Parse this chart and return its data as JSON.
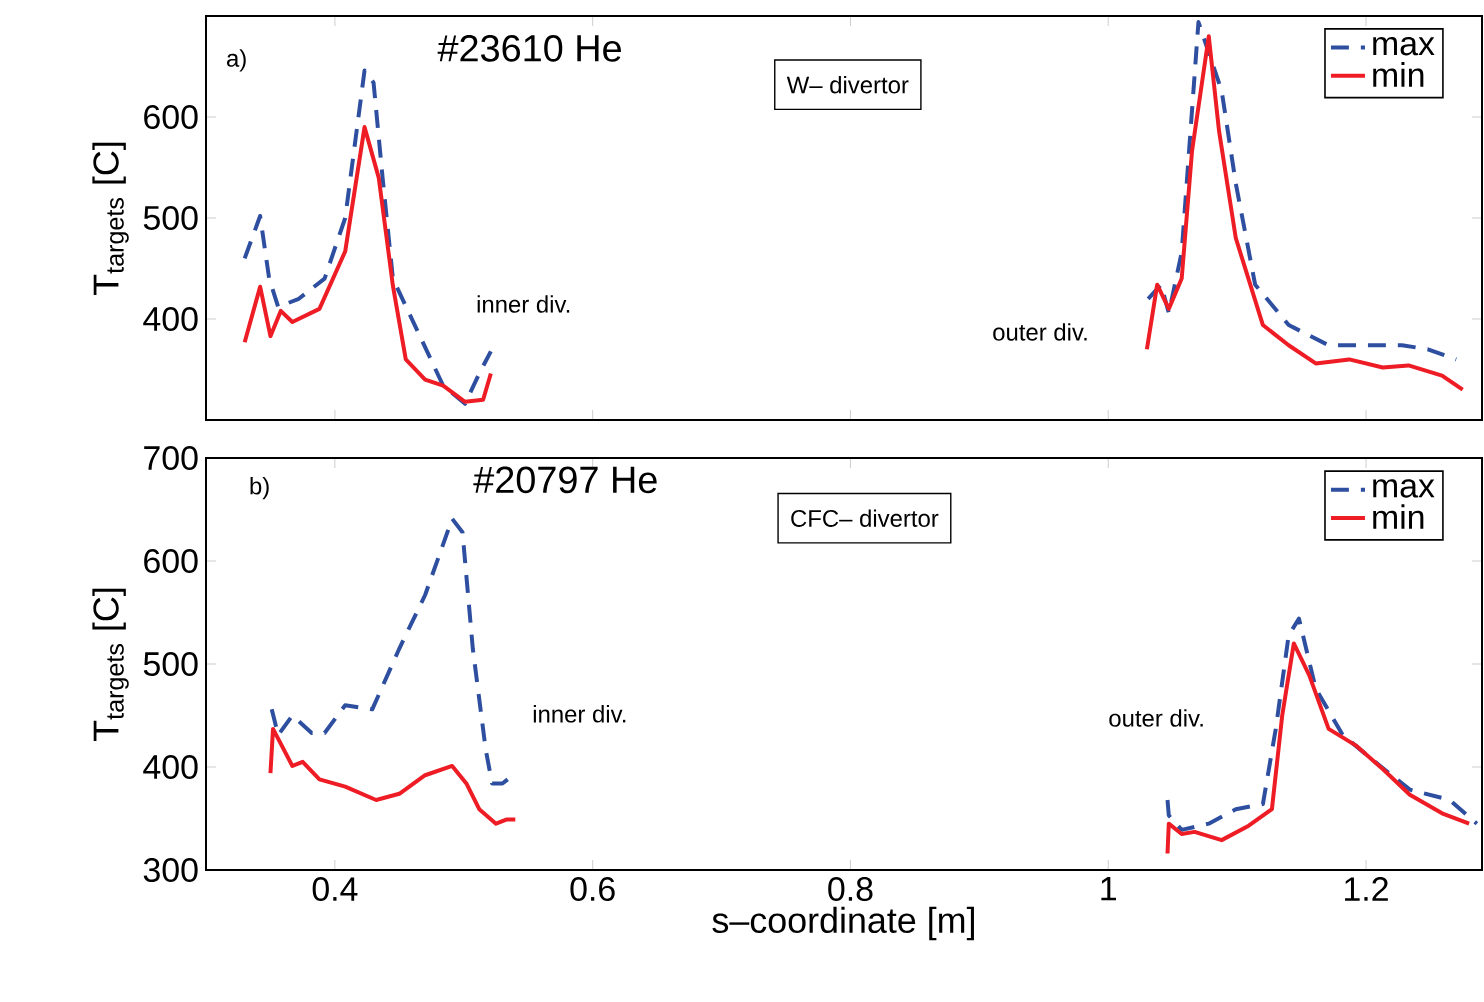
{
  "chart_data": [
    {
      "type": "line",
      "ylabel": "T$_{targets}$ [C]",
      "xlim": [
        0.3,
        1.29
      ],
      "ylim": [
        300,
        700
      ],
      "xticks": [
        0.4,
        0.6,
        0.8,
        1,
        1.2
      ],
      "yticks": [
        400,
        500,
        600
      ],
      "tick_labels": "y",
      "legend": "top right",
      "grid": false,
      "annotations": [
        "a)",
        "#23610 He",
        "W– divertor",
        "inner div.",
        "outer div."
      ],
      "series": [
        {
          "name": "max",
          "color": "#2e4fa0",
          "line_style": "dashed",
          "x": [
            0.33,
            0.342,
            0.349,
            0.356,
            0.372,
            0.392,
            0.408,
            0.423,
            0.43,
            0.437,
            0.445,
            0.484,
            0.501,
            0.512,
            0.521,
            null,
            1.031,
            1.041,
            1.047,
            1.057,
            1.07,
            1.088,
            1.099,
            1.114,
            1.14,
            1.171,
            1.208,
            1.228,
            1.248,
            1.27
          ],
          "values": [
            460,
            502,
            440,
            412,
            420,
            440,
            500,
            646,
            634,
            540,
            440,
            334,
            316,
            346,
            368,
            null,
            420,
            434,
            406,
            466,
            694,
            626,
            534,
            434,
            394,
            374,
            374,
            374,
            370,
            360
          ]
        },
        {
          "name": "min",
          "color": "#ee1c24",
          "line_style": "solid",
          "x": [
            0.33,
            0.342,
            0.35,
            0.358,
            0.367,
            0.388,
            0.408,
            0.423,
            0.434,
            0.445,
            0.455,
            0.47,
            0.484,
            0.501,
            0.515,
            0.521,
            null,
            1.03,
            1.038,
            1.047,
            1.057,
            1.065,
            1.078,
            1.086,
            1.099,
            1.12,
            1.14,
            1.161,
            1.187,
            1.213,
            1.233,
            1.259,
            1.275
          ],
          "values": [
            377,
            432,
            383,
            408,
            397,
            410,
            467,
            590,
            540,
            433,
            360,
            340,
            334,
            318,
            320,
            346,
            null,
            370,
            434,
            410,
            440,
            566,
            680,
            586,
            480,
            394,
            374,
            356,
            360,
            352,
            354,
            344,
            330
          ]
        }
      ]
    },
    {
      "type": "line",
      "xlabel": "s–coordinate [m]",
      "ylabel": "T$_{targets}$ [C]",
      "xlim": [
        0.3,
        1.29
      ],
      "ylim": [
        300,
        700
      ],
      "xticks": [
        0.4,
        0.6,
        0.8,
        1,
        1.2
      ],
      "yticks": [
        300,
        400,
        500,
        600,
        700
      ],
      "legend": "top right",
      "grid": false,
      "annotations": [
        "b)",
        "#20797 He",
        "CFC– divertor",
        "inner div.",
        "outer div."
      ],
      "series": [
        {
          "name": "max",
          "color": "#2e4fa0",
          "line_style": "dashed",
          "x": [
            0.351,
            0.356,
            0.367,
            0.382,
            0.392,
            0.408,
            0.429,
            0.45,
            0.47,
            0.491,
            0.499,
            0.507,
            0.517,
            0.522,
            0.53,
            0.54,
            null,
            1.046,
            1.047,
            1.057,
            1.078,
            1.099,
            1.12,
            1.13,
            1.14,
            1.148,
            1.161,
            1.182,
            1.208,
            1.234,
            1.265,
            1.286
          ],
          "values": [
            456,
            431,
            450,
            433,
            433,
            460,
            456,
            515,
            567,
            641,
            628,
            515,
            417,
            384,
            384,
            394,
            null,
            368,
            353,
            339,
            345,
            359,
            364,
            437,
            528,
            544,
            476,
            431,
            404,
            378,
            368,
            345
          ]
        },
        {
          "name": "min",
          "color": "#ee1c24",
          "line_style": "solid",
          "x": [
            0.35,
            0.352,
            0.367,
            0.375,
            0.388,
            0.408,
            0.432,
            0.45,
            0.47,
            0.491,
            0.502,
            0.512,
            0.525,
            0.533,
            0.54,
            null,
            1.046,
            1.047,
            1.057,
            1.067,
            1.088,
            1.109,
            1.127,
            1.135,
            1.144,
            1.156,
            1.171,
            1.192,
            1.213,
            1.234,
            1.259,
            1.28
          ],
          "values": [
            394,
            437,
            401,
            405,
            388,
            381,
            368,
            374,
            392,
            401,
            384,
            359,
            345,
            349,
            349,
            null,
            316,
            345,
            335,
            337,
            329,
            343,
            359,
            450,
            520,
            489,
            437,
            421,
            398,
            373,
            355,
            345
          ]
        }
      ]
    }
  ]
}
